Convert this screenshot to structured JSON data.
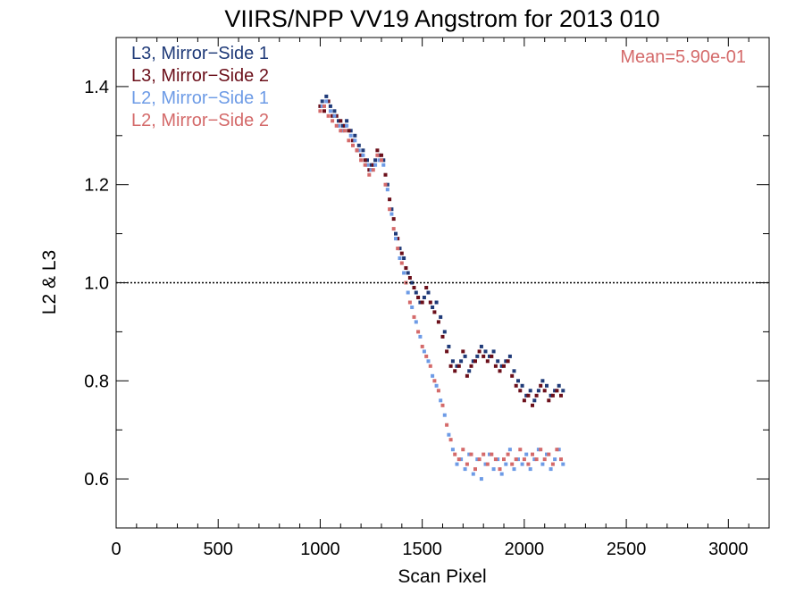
{
  "chart_data": {
    "type": "scatter",
    "title": "VIIRS/NPP VV19 Angstrom for 2013 010",
    "xlabel": "Scan Pixel",
    "ylabel": "L2 & L3",
    "xlim": [
      0,
      3200
    ],
    "ylim": [
      0.5,
      1.5
    ],
    "x_ticks": [
      0,
      500,
      1000,
      1500,
      2000,
      2500,
      3000
    ],
    "x_tick_labels": [
      "0",
      "500",
      "1000",
      "1500",
      "2000",
      "2500",
      "3000"
    ],
    "y_ticks": [
      0.6,
      0.8,
      1.0,
      1.2,
      1.4
    ],
    "y_tick_labels": [
      "0.6",
      "0.8",
      "1.0",
      "1.2",
      "1.4"
    ],
    "reference_line": {
      "y": 1.0,
      "style": "dotted"
    },
    "annotation": "Mean=5.90e-01",
    "legend_position": "top-left",
    "series": [
      {
        "name": "L3, Mirror−Side 1",
        "color": "#1f3a78",
        "x": [
          1010,
          1030,
          1050,
          1070,
          1090,
          1110,
          1130,
          1150,
          1170,
          1190,
          1210,
          1230,
          1250,
          1270,
          1290,
          1310,
          1330,
          1350,
          1370,
          1390,
          1410,
          1430,
          1450,
          1470,
          1490,
          1510,
          1530,
          1550,
          1570,
          1590,
          1610,
          1630,
          1650,
          1670,
          1690,
          1710,
          1730,
          1750,
          1770,
          1790,
          1810,
          1830,
          1850,
          1870,
          1890,
          1910,
          1930,
          1950,
          1970,
          1990,
          2010,
          2030,
          2050,
          2070,
          2090,
          2110,
          2130,
          2150,
          2170,
          2190
        ],
        "y": [
          1.37,
          1.38,
          1.36,
          1.35,
          1.33,
          1.32,
          1.33,
          1.31,
          1.3,
          1.28,
          1.27,
          1.25,
          1.24,
          1.25,
          1.26,
          1.25,
          1.2,
          1.15,
          1.1,
          1.07,
          1.05,
          1.02,
          1.0,
          0.98,
          0.96,
          0.97,
          0.98,
          0.95,
          0.96,
          0.93,
          0.9,
          0.87,
          0.84,
          0.83,
          0.84,
          0.85,
          0.82,
          0.84,
          0.85,
          0.87,
          0.86,
          0.85,
          0.86,
          0.84,
          0.83,
          0.84,
          0.85,
          0.82,
          0.8,
          0.79,
          0.77,
          0.78,
          0.76,
          0.78,
          0.8,
          0.79,
          0.77,
          0.78,
          0.79,
          0.78
        ]
      },
      {
        "name": "L3, Mirror−Side 2",
        "color": "#6b0f1a",
        "x": [
          1000,
          1020,
          1040,
          1060,
          1080,
          1100,
          1120,
          1140,
          1160,
          1180,
          1200,
          1220,
          1240,
          1260,
          1280,
          1300,
          1320,
          1340,
          1360,
          1380,
          1400,
          1420,
          1440,
          1460,
          1480,
          1500,
          1520,
          1540,
          1560,
          1580,
          1600,
          1620,
          1640,
          1660,
          1680,
          1700,
          1720,
          1740,
          1760,
          1780,
          1800,
          1820,
          1840,
          1860,
          1880,
          1900,
          1920,
          1940,
          1960,
          1980,
          2000,
          2020,
          2040,
          2060,
          2080,
          2100,
          2120,
          2140,
          2160,
          2180
        ],
        "y": [
          1.36,
          1.35,
          1.37,
          1.34,
          1.34,
          1.33,
          1.32,
          1.31,
          1.29,
          1.27,
          1.26,
          1.25,
          1.23,
          1.24,
          1.27,
          1.26,
          1.22,
          1.17,
          1.13,
          1.09,
          1.06,
          1.03,
          1.01,
          0.99,
          0.97,
          0.96,
          0.99,
          0.96,
          0.94,
          0.92,
          0.89,
          0.86,
          0.83,
          0.82,
          0.83,
          0.86,
          0.81,
          0.83,
          0.84,
          0.86,
          0.85,
          0.84,
          0.85,
          0.83,
          0.82,
          0.83,
          0.84,
          0.81,
          0.79,
          0.78,
          0.76,
          0.77,
          0.75,
          0.77,
          0.79,
          0.78,
          0.76,
          0.77,
          0.78,
          0.77
        ]
      },
      {
        "name": "L2, Mirror−Side 1",
        "color": "#6d9be6",
        "x": [
          1010,
          1030,
          1050,
          1070,
          1090,
          1110,
          1130,
          1150,
          1170,
          1190,
          1210,
          1230,
          1250,
          1270,
          1290,
          1310,
          1330,
          1350,
          1370,
          1390,
          1410,
          1430,
          1450,
          1470,
          1490,
          1510,
          1530,
          1550,
          1570,
          1590,
          1610,
          1630,
          1650,
          1670,
          1690,
          1710,
          1730,
          1750,
          1770,
          1790,
          1810,
          1830,
          1850,
          1870,
          1890,
          1910,
          1930,
          1950,
          1970,
          1990,
          2010,
          2030,
          2050,
          2070,
          2090,
          2110,
          2130,
          2150,
          2170,
          2190
        ],
        "y": [
          1.36,
          1.37,
          1.35,
          1.34,
          1.32,
          1.31,
          1.32,
          1.3,
          1.29,
          1.27,
          1.26,
          1.24,
          1.23,
          1.24,
          1.25,
          1.24,
          1.19,
          1.14,
          1.09,
          1.05,
          1.02,
          0.98,
          0.95,
          0.92,
          0.89,
          0.86,
          0.84,
          0.81,
          0.79,
          0.76,
          0.73,
          0.69,
          0.66,
          0.63,
          0.64,
          0.62,
          0.65,
          0.61,
          0.64,
          0.6,
          0.63,
          0.65,
          0.62,
          0.64,
          0.61,
          0.63,
          0.66,
          0.62,
          0.64,
          0.63,
          0.65,
          0.62,
          0.64,
          0.66,
          0.63,
          0.65,
          0.62,
          0.64,
          0.66,
          0.63
        ]
      },
      {
        "name": "L2, Mirror−Side 2",
        "color": "#d46a6a",
        "x": [
          1000,
          1020,
          1040,
          1060,
          1080,
          1100,
          1120,
          1140,
          1160,
          1180,
          1200,
          1220,
          1240,
          1260,
          1280,
          1300,
          1320,
          1340,
          1360,
          1380,
          1400,
          1420,
          1440,
          1460,
          1480,
          1500,
          1520,
          1540,
          1560,
          1580,
          1600,
          1620,
          1640,
          1660,
          1680,
          1700,
          1720,
          1740,
          1760,
          1780,
          1800,
          1820,
          1840,
          1860,
          1880,
          1900,
          1920,
          1940,
          1960,
          1980,
          2000,
          2020,
          2040,
          2060,
          2080,
          2100,
          2120,
          2140,
          2160,
          2180
        ],
        "y": [
          1.35,
          1.36,
          1.34,
          1.33,
          1.32,
          1.31,
          1.31,
          1.29,
          1.28,
          1.27,
          1.25,
          1.24,
          1.22,
          1.23,
          1.26,
          1.25,
          1.2,
          1.15,
          1.11,
          1.07,
          1.04,
          1.0,
          0.96,
          0.93,
          0.9,
          0.87,
          0.85,
          0.83,
          0.8,
          0.78,
          0.75,
          0.71,
          0.68,
          0.65,
          0.64,
          0.66,
          0.63,
          0.65,
          0.62,
          0.64,
          0.65,
          0.63,
          0.65,
          0.64,
          0.62,
          0.64,
          0.65,
          0.63,
          0.64,
          0.66,
          0.64,
          0.63,
          0.65,
          0.64,
          0.66,
          0.64,
          0.65,
          0.63,
          0.66,
          0.64
        ]
      }
    ]
  }
}
